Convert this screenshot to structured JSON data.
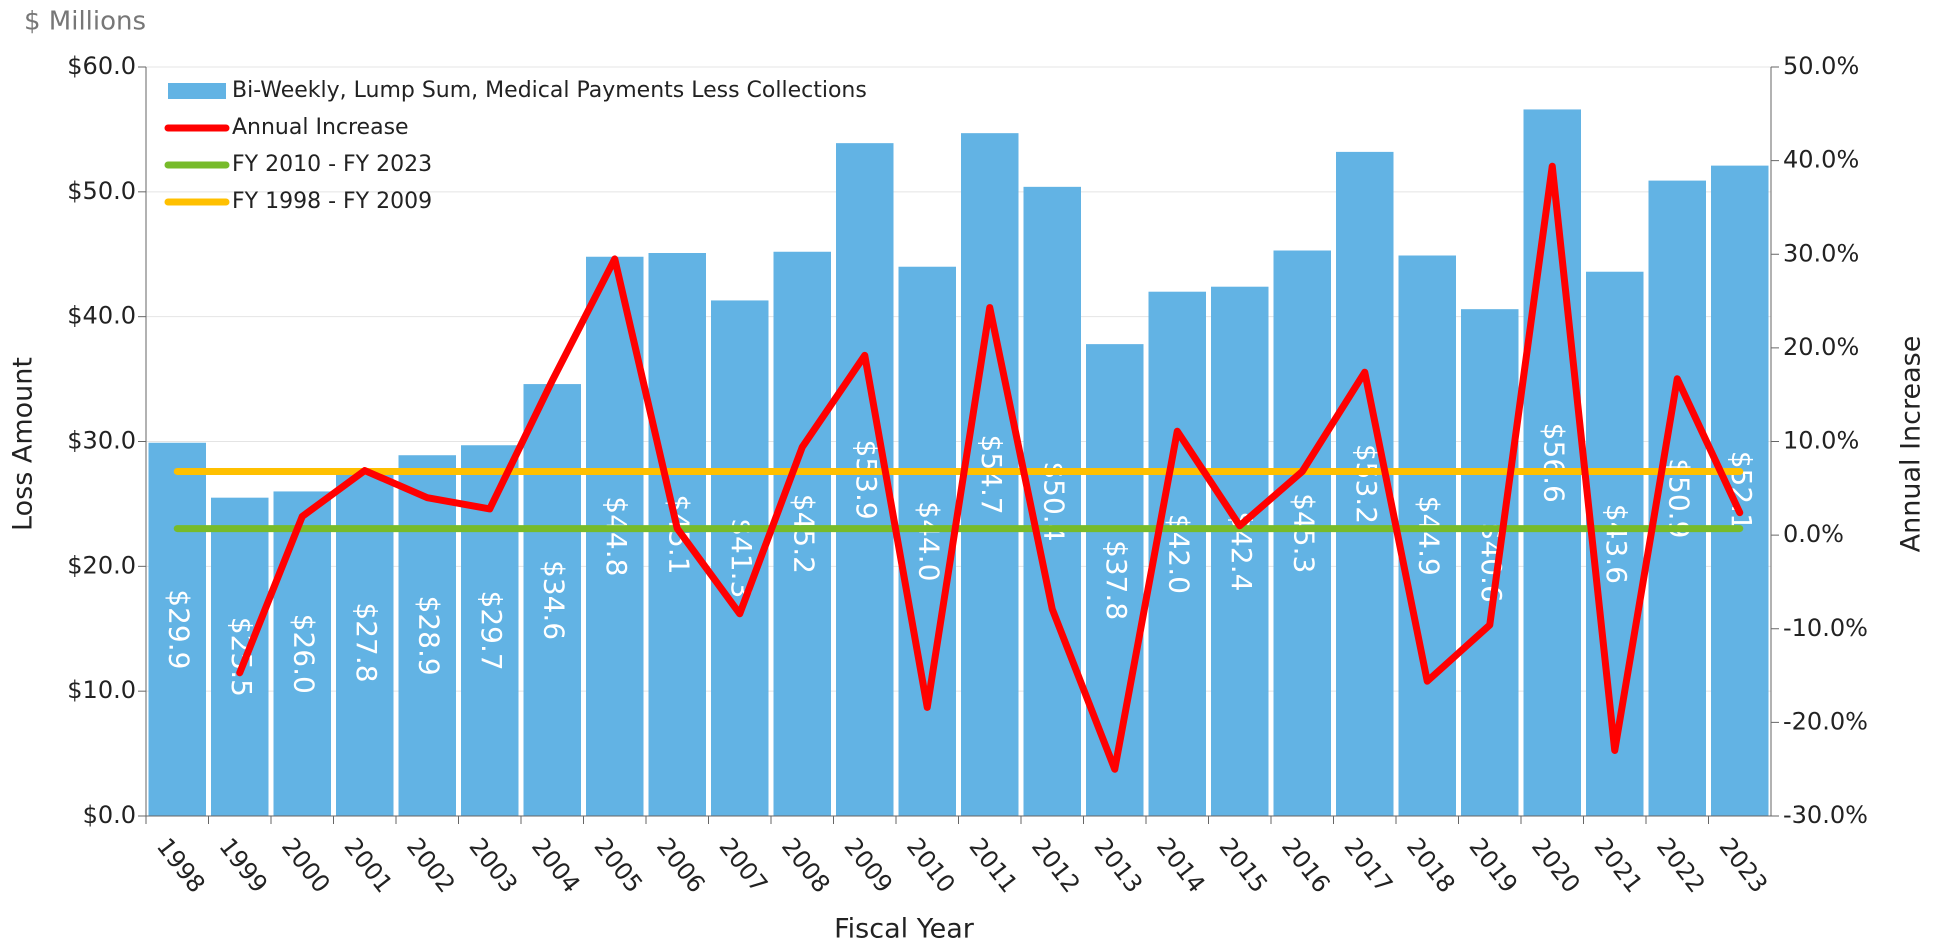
{
  "chart_data": {
    "type": "bar",
    "unit_label": "$ Millions",
    "y_label": "Loss Amount",
    "y2_label": "Annual Increase",
    "x_label": "Fiscal Year",
    "categories": [
      "1998",
      "1999",
      "2000",
      "2001",
      "2002",
      "2003",
      "2004",
      "2005",
      "2006",
      "2007",
      "2008",
      "2009",
      "2010",
      "2011",
      "2012",
      "2013",
      "2014",
      "2015",
      "2016",
      "2017",
      "2018",
      "2019",
      "2020",
      "2021",
      "2022",
      "2023"
    ],
    "series": [
      {
        "name": "Bi-Weekly, Lump Sum, Medical Payments Less Collections",
        "type": "bar",
        "color": "#62b3e4",
        "axis": "y",
        "values": [
          29.9,
          25.5,
          26.0,
          27.8,
          28.9,
          29.7,
          34.6,
          44.8,
          45.1,
          41.3,
          45.2,
          53.9,
          44.0,
          54.7,
          50.4,
          37.8,
          42.0,
          42.4,
          45.3,
          53.2,
          44.9,
          40.6,
          56.6,
          43.6,
          50.9,
          52.1
        ],
        "value_labels": [
          "$29.9",
          "$25.5",
          "$26.0",
          "$27.8",
          "$28.9",
          "$29.7",
          "$34.6",
          "$44.8",
          "$45.1",
          "$41.3",
          "$45.2",
          "$53.9",
          "$44.0",
          "$54.7",
          "$50.4",
          "$37.8",
          "$42.0",
          "$42.4",
          "$45.3",
          "$53.2",
          "$44.9",
          "$40.6",
          "$56.6",
          "$43.6",
          "$50.9",
          "$52.1"
        ]
      },
      {
        "name": "Annual Increase",
        "type": "line",
        "color": "#ff0000",
        "axis": "y2",
        "values": [
          null,
          -14.7,
          2.0,
          6.9,
          4.0,
          2.8,
          16.5,
          29.5,
          0.7,
          -8.4,
          9.4,
          19.2,
          -18.4,
          24.3,
          -7.9,
          -25.0,
          11.1,
          1.0,
          6.8,
          17.4,
          -15.6,
          -9.6,
          39.4,
          -23.0,
          16.7,
          2.4
        ]
      },
      {
        "name": "FY 2010 - FY 2023",
        "type": "line",
        "color": "#77bb2a",
        "axis": "y2",
        "values": [
          0.7,
          0.7,
          0.7,
          0.7,
          0.7,
          0.7,
          0.7,
          0.7,
          0.7,
          0.7,
          0.7,
          0.7,
          0.7,
          0.7,
          0.7,
          0.7,
          0.7,
          0.7,
          0.7,
          0.7,
          0.7,
          0.7,
          0.7,
          0.7,
          0.7,
          0.7
        ]
      },
      {
        "name": "FY 1998 - FY 2009",
        "type": "line",
        "color": "#ffc000",
        "axis": "y2",
        "values": [
          6.8,
          6.8,
          6.8,
          6.8,
          6.8,
          6.8,
          6.8,
          6.8,
          6.8,
          6.8,
          6.8,
          6.8,
          6.8,
          6.8,
          6.8,
          6.8,
          6.8,
          6.8,
          6.8,
          6.8,
          6.8,
          6.8,
          6.8,
          6.8,
          6.8,
          6.8
        ]
      }
    ],
    "ylim": [
      0,
      60
    ],
    "yticks": [
      {
        "value": 0,
        "label": "$0.0"
      },
      {
        "value": 10,
        "label": "$10.0"
      },
      {
        "value": 20,
        "label": "$20.0"
      },
      {
        "value": 30,
        "label": "$30.0"
      },
      {
        "value": 40,
        "label": "$40.0"
      },
      {
        "value": 50,
        "label": "$50.0"
      },
      {
        "value": 60,
        "label": "$60.0"
      }
    ],
    "y2lim": [
      -30,
      50
    ],
    "y2ticks": [
      {
        "value": -30,
        "label": "-30.0%"
      },
      {
        "value": -20,
        "label": "-20.0%"
      },
      {
        "value": -10,
        "label": "-10.0%"
      },
      {
        "value": 0,
        "label": "0.0%"
      },
      {
        "value": 10,
        "label": "10.0%"
      },
      {
        "value": 20,
        "label": "20.0%"
      },
      {
        "value": 30,
        "label": "30.0%"
      },
      {
        "value": 40,
        "label": "40.0%"
      },
      {
        "value": 50,
        "label": "50.0%"
      }
    ],
    "grid": true,
    "legend": "upper left"
  }
}
